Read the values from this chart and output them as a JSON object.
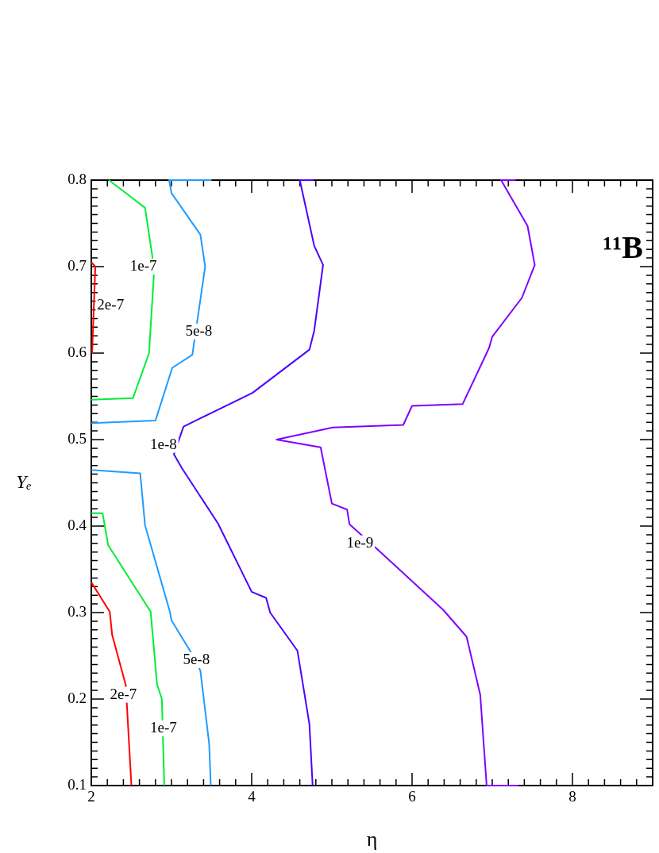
{
  "chart_data": {
    "type": "line",
    "xlabel": "η",
    "ylabel": "Yₑ",
    "marker": "none",
    "line_style": "solid",
    "grid": false,
    "legend": false,
    "xlim": [
      2,
      9
    ],
    "ylim": [
      0.1,
      0.8
    ],
    "xticks": [
      2,
      {
        "value": 2.2,
        "label": null
      },
      {
        "value": 2.4,
        "label": null
      },
      {
        "value": 2.6,
        "label": null
      },
      {
        "value": 2.8,
        "label": null
      },
      {
        "value": 3,
        "label": null
      },
      {
        "value": 3.2,
        "label": null
      },
      {
        "value": 3.4,
        "label": null
      },
      {
        "value": 3.6,
        "label": null
      },
      {
        "value": 3.8,
        "label": null
      },
      4,
      {
        "value": 4.2,
        "label": null
      },
      {
        "value": 4.4,
        "label": null
      },
      {
        "value": 4.6,
        "label": null
      },
      {
        "value": 4.8,
        "label": null
      },
      {
        "value": 5,
        "label": null
      },
      {
        "value": 5.2,
        "label": null
      },
      {
        "value": 5.4,
        "label": null
      },
      {
        "value": 5.6,
        "label": null
      },
      {
        "value": 5.8,
        "label": null
      },
      6,
      {
        "value": 6.2,
        "label": null
      },
      {
        "value": 6.4,
        "label": null
      },
      {
        "value": 6.6,
        "label": null
      },
      {
        "value": 6.8,
        "label": null
      },
      {
        "value": 7,
        "label": null
      },
      {
        "value": 7.2,
        "label": null
      },
      {
        "value": 7.4,
        "label": null
      },
      {
        "value": 7.6,
        "label": null
      },
      {
        "value": 7.8,
        "label": null
      },
      8,
      {
        "value": 8.2,
        "label": null
      },
      {
        "value": 8.4,
        "label": null
      },
      {
        "value": 8.6,
        "label": null
      },
      {
        "value": 8.8,
        "label": null
      }
    ],
    "yticks": [
      0.1,
      {
        "value": 0.11,
        "label": null
      },
      {
        "value": 0.12,
        "label": null
      },
      {
        "value": 0.13,
        "label": null
      },
      {
        "value": 0.14,
        "label": null
      },
      {
        "value": 0.15,
        "label": null
      },
      {
        "value": 0.16,
        "label": null
      },
      {
        "value": 0.17,
        "label": null
      },
      {
        "value": 0.18,
        "label": null
      },
      {
        "value": 0.19,
        "label": null
      },
      0.2,
      {
        "value": 0.21,
        "label": null
      },
      {
        "value": 0.22,
        "label": null
      },
      {
        "value": 0.23,
        "label": null
      },
      {
        "value": 0.24,
        "label": null
      },
      {
        "value": 0.25,
        "label": null
      },
      {
        "value": 0.26,
        "label": null
      },
      {
        "value": 0.27,
        "label": null
      },
      {
        "value": 0.28,
        "label": null
      },
      {
        "value": 0.29,
        "label": null
      },
      0.3,
      {
        "value": 0.31,
        "label": null
      },
      {
        "value": 0.32,
        "label": null
      },
      {
        "value": 0.33,
        "label": null
      },
      {
        "value": 0.34,
        "label": null
      },
      {
        "value": 0.35,
        "label": null
      },
      {
        "value": 0.36,
        "label": null
      },
      {
        "value": 0.37,
        "label": null
      },
      {
        "value": 0.38,
        "label": null
      },
      {
        "value": 0.39,
        "label": null
      },
      0.4,
      {
        "value": 0.41,
        "label": null
      },
      {
        "value": 0.42,
        "label": null
      },
      {
        "value": 0.43,
        "label": null
      },
      {
        "value": 0.44,
        "label": null
      },
      {
        "value": 0.45,
        "label": null
      },
      {
        "value": 0.46,
        "label": null
      },
      {
        "value": 0.47,
        "label": null
      },
      {
        "value": 0.48,
        "label": null
      },
      {
        "value": 0.49,
        "label": null
      },
      0.5,
      {
        "value": 0.51,
        "label": null
      },
      {
        "value": 0.52,
        "label": null
      },
      {
        "value": 0.53,
        "label": null
      },
      {
        "value": 0.54,
        "label": null
      },
      {
        "value": 0.55,
        "label": null
      },
      {
        "value": 0.56,
        "label": null
      },
      {
        "value": 0.57,
        "label": null
      },
      {
        "value": 0.58,
        "label": null
      },
      {
        "value": 0.59,
        "label": null
      },
      0.6,
      {
        "value": 0.61,
        "label": null
      },
      {
        "value": 0.62,
        "label": null
      },
      {
        "value": 0.63,
        "label": null
      },
      {
        "value": 0.64,
        "label": null
      },
      {
        "value": 0.65,
        "label": null
      },
      {
        "value": 0.66,
        "label": null
      },
      {
        "value": 0.67,
        "label": null
      },
      {
        "value": 0.68,
        "label": null
      },
      {
        "value": 0.69,
        "label": null
      },
      0.7,
      {
        "value": 0.71,
        "label": null
      },
      {
        "value": 0.72,
        "label": null
      },
      {
        "value": 0.73,
        "label": null
      },
      {
        "value": 0.74,
        "label": null
      },
      {
        "value": 0.75,
        "label": null
      },
      {
        "value": 0.76,
        "label": null
      },
      {
        "value": 0.77,
        "label": null
      },
      {
        "value": 0.78,
        "label": null
      },
      {
        "value": 0.79,
        "label": null
      },
      0.8
    ],
    "series": [
      {
        "color": "#ff0000",
        "x": [
          2,
          2.05,
          2.03,
          2.01
        ],
        "values": [
          0.705,
          0.7,
          0.65,
          0.6
        ]
      },
      {
        "color": "#00ee33",
        "x": [
          2.22,
          2.67,
          2.76,
          2.78,
          2.72,
          2.52,
          2
        ],
        "values": [
          0.8,
          0.768,
          0.713,
          0.69,
          0.6,
          0.548,
          0.546
        ]
      },
      {
        "color": "#1e9bff",
        "x": [
          3.5,
          2.97,
          3.0,
          3.36,
          3.42,
          3.26,
          3.01,
          2.8,
          2
        ],
        "values": [
          0.8,
          0.8,
          0.785,
          0.737,
          0.7,
          0.598,
          0.583,
          0.522,
          0.519
        ]
      },
      {
        "color": "#4b00ff",
        "x": [
          4.77,
          4.6,
          4.78,
          4.89,
          4.78,
          4.72,
          4.01,
          3.15,
          3.03,
          3.13,
          3.58,
          4.0,
          4.18,
          4.23,
          4.57,
          4.72,
          4.76
        ],
        "values": [
          0.8,
          0.8,
          0.724,
          0.702,
          0.626,
          0.604,
          0.554,
          0.515,
          0.483,
          0.467,
          0.403,
          0.324,
          0.317,
          0.3,
          0.256,
          0.171,
          0.1
        ]
      },
      {
        "color": "#1e9bff",
        "x": [
          2,
          2.61,
          2.67,
          2.98,
          3.0,
          3.23,
          3.36,
          3.47,
          3.49
        ],
        "values": [
          0.465,
          0.461,
          0.401,
          0.301,
          0.291,
          0.256,
          0.233,
          0.148,
          0.1
        ]
      },
      {
        "color": "#00ee33",
        "x": [
          2,
          2.14,
          2.21,
          2.74,
          2.82,
          2.88,
          2.91
        ],
        "values": [
          0.415,
          0.415,
          0.378,
          0.301,
          0.217,
          0.2,
          0.1
        ]
      },
      {
        "color": "#ff0000",
        "x": [
          2,
          2.23,
          2.26,
          2.43,
          2.5
        ],
        "values": [
          0.335,
          0.301,
          0.274,
          0.216,
          0.1
        ]
      },
      {
        "color": "#8000ff",
        "x": [
          7.29,
          7.11,
          7.44,
          7.53,
          7.37,
          7.0,
          6.96,
          6.63,
          6.0,
          5.89,
          5.01,
          4.31,
          4.86,
          5.0,
          5.19,
          5.22,
          5.57,
          6.39,
          6.68,
          6.85,
          6.93,
          7.33
        ],
        "values": [
          0.8,
          0.8,
          0.747,
          0.702,
          0.664,
          0.619,
          0.606,
          0.541,
          0.539,
          0.517,
          0.514,
          0.5,
          0.491,
          0.426,
          0.419,
          0.402,
          0.373,
          0.303,
          0.272,
          0.205,
          0.1,
          0.1
        ]
      }
    ],
    "annotations": [
      {
        "text": "2e-7",
        "x": 2.24,
        "y": 0.655
      },
      {
        "text": "1e-7",
        "x": 2.65,
        "y": 0.7
      },
      {
        "text": "5e-8",
        "x": 3.34,
        "y": 0.625
      },
      {
        "text": "1e-8",
        "x": 2.9,
        "y": 0.494
      },
      {
        "text": "1e-9",
        "x": 5.35,
        "y": 0.38
      },
      {
        "text": "5e-8",
        "x": 3.31,
        "y": 0.245
      },
      {
        "text": "2e-7",
        "x": 2.4,
        "y": 0.205
      },
      {
        "text": "1e-7",
        "x": 2.9,
        "y": 0.166
      },
      "¹¹B"
    ]
  }
}
